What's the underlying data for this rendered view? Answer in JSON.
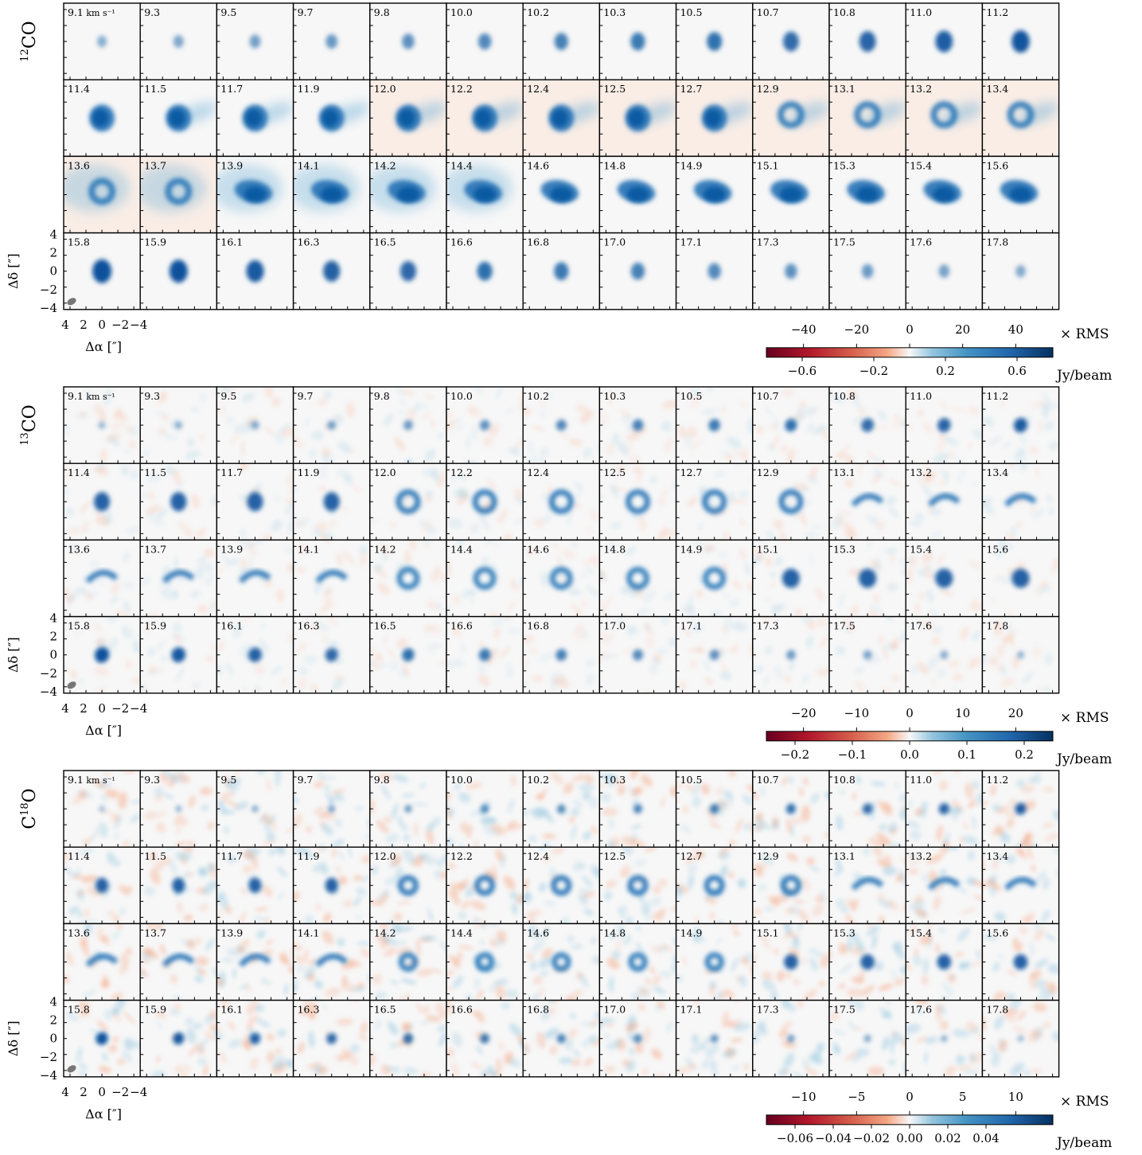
{
  "chart_data": {
    "type": "heatmap",
    "grid": {
      "rows": 4,
      "cols": 13
    },
    "velocity_unit_label": "km s⁻¹",
    "channel_velocities": [
      "9.1",
      "9.3",
      "9.5",
      "9.7",
      "9.8",
      "10.0",
      "10.2",
      "10.3",
      "10.5",
      "10.7",
      "10.8",
      "11.0",
      "11.2",
      "11.4",
      "11.5",
      "11.7",
      "11.9",
      "12.0",
      "12.2",
      "12.4",
      "12.5",
      "12.7",
      "12.9",
      "13.1",
      "13.2",
      "13.4",
      "13.6",
      "13.7",
      "13.9",
      "14.1",
      "14.2",
      "14.4",
      "14.6",
      "14.8",
      "14.9",
      "15.1",
      "15.3",
      "15.4",
      "15.6",
      "15.8",
      "15.9",
      "16.1",
      "16.3",
      "16.5",
      "16.6",
      "16.8",
      "17.0",
      "17.1",
      "17.3",
      "17.5",
      "17.6",
      "17.8"
    ],
    "axes": {
      "xlabel": "Δα [″]",
      "ylabel": "Δδ [″]",
      "xticks": [
        "4",
        "2",
        "0",
        "−2",
        "−4"
      ],
      "yticks": [
        "4",
        "2",
        "0",
        "−2",
        "−4"
      ],
      "xlim": [
        4,
        -4
      ],
      "ylim": [
        -4,
        4
      ]
    },
    "colormap": "RdBu diverging (red negative, blue positive)",
    "colors": {
      "neg_end": "#67001f",
      "mid": "#f7f7f7",
      "pos_end": "#053061"
    },
    "panels": [
      {
        "molecule_pre": "",
        "molecule_sup": "12",
        "molecule_post": "CO",
        "rms_label": "× RMS",
        "rms_ticks": [
          "−40",
          "−20",
          "0",
          "20",
          "40"
        ],
        "rms_tick_values": [
          -40,
          -20,
          0,
          20,
          40
        ],
        "jy_label": "Jy/beam",
        "jy_ticks": [
          "−0.6",
          "−0.2",
          "0.2",
          "0.6"
        ],
        "jy_tick_values": [
          -0.6,
          -0.2,
          0.2,
          0.6
        ],
        "jy_range": [
          -0.8,
          0.8
        ],
        "noise_level": 0.0
      },
      {
        "molecule_pre": "",
        "molecule_sup": "13",
        "molecule_post": "CO",
        "rms_label": "× RMS",
        "rms_ticks": [
          "−20",
          "−10",
          "0",
          "10",
          "20"
        ],
        "rms_tick_values": [
          -20,
          -10,
          0,
          10,
          20
        ],
        "jy_label": "Jy/beam",
        "jy_ticks": [
          "−0.2",
          "−0.1",
          "0.0",
          "0.1",
          "0.2"
        ],
        "jy_tick_values": [
          -0.2,
          -0.1,
          0.0,
          0.1,
          0.2
        ],
        "jy_range": [
          -0.25,
          0.25
        ],
        "noise_level": 0.1
      },
      {
        "molecule_pre": "C",
        "molecule_sup": "18",
        "molecule_post": "O",
        "rms_label": "× RMS",
        "rms_ticks": [
          "−10",
          "−5",
          "0",
          "5",
          "10"
        ],
        "rms_tick_values": [
          -10,
          -5,
          0,
          5,
          10
        ],
        "jy_label": "Jy/beam",
        "jy_ticks": [
          "−0.06",
          "−0.04",
          "−0.02",
          "0.00",
          "0.02",
          "0.04"
        ],
        "jy_tick_values": [
          -0.06,
          -0.04,
          -0.02,
          0.0,
          0.02,
          0.04
        ],
        "jy_range": [
          -0.075,
          0.075
        ],
        "noise_level": 0.2
      }
    ]
  }
}
